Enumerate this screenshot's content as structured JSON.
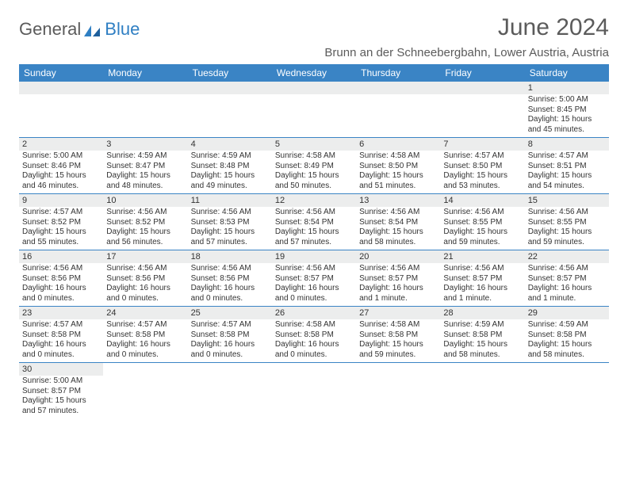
{
  "brand": {
    "part1": "General",
    "part2": "Blue"
  },
  "title": "June 2024",
  "location": "Brunn an der Schneebergbahn, Lower Austria, Austria",
  "colors": {
    "header_blue": "#3a84c5",
    "row_gray": "#eceded",
    "text_gray": "#5b5b5b",
    "divider": "#3a84c5"
  },
  "weekdays": [
    "Sunday",
    "Monday",
    "Tuesday",
    "Wednesday",
    "Thursday",
    "Friday",
    "Saturday"
  ],
  "weeks": [
    [
      {
        "n": "",
        "sr": "",
        "ss": "",
        "dl": "",
        "empty": true
      },
      {
        "n": "",
        "sr": "",
        "ss": "",
        "dl": "",
        "empty": true
      },
      {
        "n": "",
        "sr": "",
        "ss": "",
        "dl": "",
        "empty": true
      },
      {
        "n": "",
        "sr": "",
        "ss": "",
        "dl": "",
        "empty": true
      },
      {
        "n": "",
        "sr": "",
        "ss": "",
        "dl": "",
        "empty": true
      },
      {
        "n": "",
        "sr": "",
        "ss": "",
        "dl": "",
        "empty": true
      },
      {
        "n": "1",
        "sr": "Sunrise: 5:00 AM",
        "ss": "Sunset: 8:45 PM",
        "dl": "Daylight: 15 hours and 45 minutes."
      }
    ],
    [
      {
        "n": "2",
        "sr": "Sunrise: 5:00 AM",
        "ss": "Sunset: 8:46 PM",
        "dl": "Daylight: 15 hours and 46 minutes."
      },
      {
        "n": "3",
        "sr": "Sunrise: 4:59 AM",
        "ss": "Sunset: 8:47 PM",
        "dl": "Daylight: 15 hours and 48 minutes."
      },
      {
        "n": "4",
        "sr": "Sunrise: 4:59 AM",
        "ss": "Sunset: 8:48 PM",
        "dl": "Daylight: 15 hours and 49 minutes."
      },
      {
        "n": "5",
        "sr": "Sunrise: 4:58 AM",
        "ss": "Sunset: 8:49 PM",
        "dl": "Daylight: 15 hours and 50 minutes."
      },
      {
        "n": "6",
        "sr": "Sunrise: 4:58 AM",
        "ss": "Sunset: 8:50 PM",
        "dl": "Daylight: 15 hours and 51 minutes."
      },
      {
        "n": "7",
        "sr": "Sunrise: 4:57 AM",
        "ss": "Sunset: 8:50 PM",
        "dl": "Daylight: 15 hours and 53 minutes."
      },
      {
        "n": "8",
        "sr": "Sunrise: 4:57 AM",
        "ss": "Sunset: 8:51 PM",
        "dl": "Daylight: 15 hours and 54 minutes."
      }
    ],
    [
      {
        "n": "9",
        "sr": "Sunrise: 4:57 AM",
        "ss": "Sunset: 8:52 PM",
        "dl": "Daylight: 15 hours and 55 minutes."
      },
      {
        "n": "10",
        "sr": "Sunrise: 4:56 AM",
        "ss": "Sunset: 8:52 PM",
        "dl": "Daylight: 15 hours and 56 minutes."
      },
      {
        "n": "11",
        "sr": "Sunrise: 4:56 AM",
        "ss": "Sunset: 8:53 PM",
        "dl": "Daylight: 15 hours and 57 minutes."
      },
      {
        "n": "12",
        "sr": "Sunrise: 4:56 AM",
        "ss": "Sunset: 8:54 PM",
        "dl": "Daylight: 15 hours and 57 minutes."
      },
      {
        "n": "13",
        "sr": "Sunrise: 4:56 AM",
        "ss": "Sunset: 8:54 PM",
        "dl": "Daylight: 15 hours and 58 minutes."
      },
      {
        "n": "14",
        "sr": "Sunrise: 4:56 AM",
        "ss": "Sunset: 8:55 PM",
        "dl": "Daylight: 15 hours and 59 minutes."
      },
      {
        "n": "15",
        "sr": "Sunrise: 4:56 AM",
        "ss": "Sunset: 8:55 PM",
        "dl": "Daylight: 15 hours and 59 minutes."
      }
    ],
    [
      {
        "n": "16",
        "sr": "Sunrise: 4:56 AM",
        "ss": "Sunset: 8:56 PM",
        "dl": "Daylight: 16 hours and 0 minutes."
      },
      {
        "n": "17",
        "sr": "Sunrise: 4:56 AM",
        "ss": "Sunset: 8:56 PM",
        "dl": "Daylight: 16 hours and 0 minutes."
      },
      {
        "n": "18",
        "sr": "Sunrise: 4:56 AM",
        "ss": "Sunset: 8:56 PM",
        "dl": "Daylight: 16 hours and 0 minutes."
      },
      {
        "n": "19",
        "sr": "Sunrise: 4:56 AM",
        "ss": "Sunset: 8:57 PM",
        "dl": "Daylight: 16 hours and 0 minutes."
      },
      {
        "n": "20",
        "sr": "Sunrise: 4:56 AM",
        "ss": "Sunset: 8:57 PM",
        "dl": "Daylight: 16 hours and 1 minute."
      },
      {
        "n": "21",
        "sr": "Sunrise: 4:56 AM",
        "ss": "Sunset: 8:57 PM",
        "dl": "Daylight: 16 hours and 1 minute."
      },
      {
        "n": "22",
        "sr": "Sunrise: 4:56 AM",
        "ss": "Sunset: 8:57 PM",
        "dl": "Daylight: 16 hours and 1 minute."
      }
    ],
    [
      {
        "n": "23",
        "sr": "Sunrise: 4:57 AM",
        "ss": "Sunset: 8:58 PM",
        "dl": "Daylight: 16 hours and 0 minutes."
      },
      {
        "n": "24",
        "sr": "Sunrise: 4:57 AM",
        "ss": "Sunset: 8:58 PM",
        "dl": "Daylight: 16 hours and 0 minutes."
      },
      {
        "n": "25",
        "sr": "Sunrise: 4:57 AM",
        "ss": "Sunset: 8:58 PM",
        "dl": "Daylight: 16 hours and 0 minutes."
      },
      {
        "n": "26",
        "sr": "Sunrise: 4:58 AM",
        "ss": "Sunset: 8:58 PM",
        "dl": "Daylight: 16 hours and 0 minutes."
      },
      {
        "n": "27",
        "sr": "Sunrise: 4:58 AM",
        "ss": "Sunset: 8:58 PM",
        "dl": "Daylight: 15 hours and 59 minutes."
      },
      {
        "n": "28",
        "sr": "Sunrise: 4:59 AM",
        "ss": "Sunset: 8:58 PM",
        "dl": "Daylight: 15 hours and 58 minutes."
      },
      {
        "n": "29",
        "sr": "Sunrise: 4:59 AM",
        "ss": "Sunset: 8:58 PM",
        "dl": "Daylight: 15 hours and 58 minutes."
      }
    ],
    [
      {
        "n": "30",
        "sr": "Sunrise: 5:00 AM",
        "ss": "Sunset: 8:57 PM",
        "dl": "Daylight: 15 hours and 57 minutes."
      },
      {
        "n": "",
        "sr": "",
        "ss": "",
        "dl": "",
        "empty": true
      },
      {
        "n": "",
        "sr": "",
        "ss": "",
        "dl": "",
        "empty": true
      },
      {
        "n": "",
        "sr": "",
        "ss": "",
        "dl": "",
        "empty": true
      },
      {
        "n": "",
        "sr": "",
        "ss": "",
        "dl": "",
        "empty": true
      },
      {
        "n": "",
        "sr": "",
        "ss": "",
        "dl": "",
        "empty": true
      },
      {
        "n": "",
        "sr": "",
        "ss": "",
        "dl": "",
        "empty": true
      }
    ]
  ]
}
